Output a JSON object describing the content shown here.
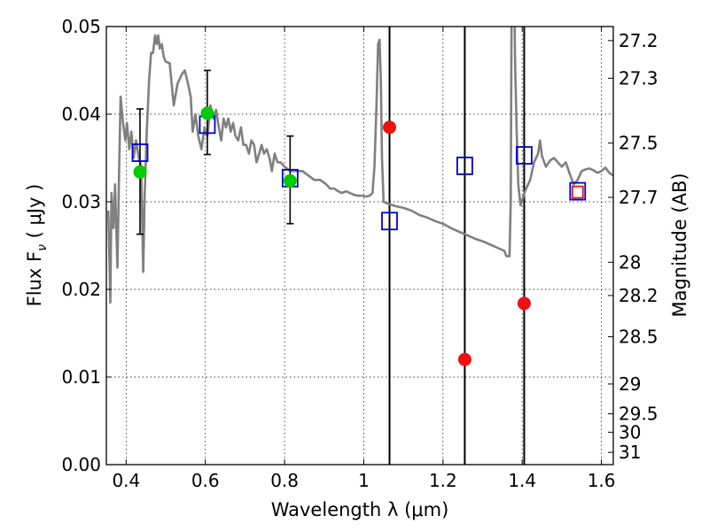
{
  "chart_data": {
    "type": "scatter",
    "xlabel": "Wavelength  λ (μm)",
    "ylabel": "Flux  F",
    "ylabel_sub": "ν",
    "ylabel_unit": "  ( μJy )",
    "y2label": "Magnitude (AB)",
    "xlim": [
      0.35,
      1.63
    ],
    "ylim": [
      0.0,
      0.05
    ],
    "grid": true,
    "x_ticks": [
      {
        "value": 0.4,
        "label": "0.4"
      },
      {
        "value": 0.6,
        "label": "0.6"
      },
      {
        "value": 0.8,
        "label": "0.8"
      },
      {
        "value": 1.0,
        "label": "1"
      },
      {
        "value": 1.2,
        "label": "1.2"
      },
      {
        "value": 1.4,
        "label": "1.4"
      },
      {
        "value": 1.6,
        "label": "1.6"
      }
    ],
    "y_ticks": [
      {
        "value": 0.0,
        "label": "0.00"
      },
      {
        "value": 0.01,
        "label": "0.01"
      },
      {
        "value": 0.02,
        "label": "0.02"
      },
      {
        "value": 0.03,
        "label": "0.03"
      },
      {
        "value": 0.04,
        "label": "0.04"
      },
      {
        "value": 0.05,
        "label": "0.05"
      }
    ],
    "mag_ticks": [
      {
        "label": "27.2",
        "flux": 0.0484
      },
      {
        "label": "27.3",
        "flux": 0.0441
      },
      {
        "label": "27.5",
        "flux": 0.0367
      },
      {
        "label": "27.7",
        "flux": 0.0305
      },
      {
        "label": "28",
        "flux": 0.0231
      },
      {
        "label": "28.2",
        "flux": 0.0193
      },
      {
        "label": "28.5",
        "flux": 0.0146
      },
      {
        "label": "29",
        "flux": 0.0092
      },
      {
        "label": "29.5",
        "flux": 0.0058
      },
      {
        "label": "30",
        "flux": 0.0037
      },
      {
        "label": "31",
        "flux": 0.0014
      }
    ],
    "model_spectrum": {
      "color": "#808080",
      "points": [
        [
          0.355,
          0.029
        ],
        [
          0.36,
          0.0185
        ],
        [
          0.363,
          0.031
        ],
        [
          0.368,
          0.027
        ],
        [
          0.372,
          0.032
        ],
        [
          0.378,
          0.0225
        ],
        [
          0.382,
          0.033
        ],
        [
          0.386,
          0.042
        ],
        [
          0.392,
          0.039
        ],
        [
          0.398,
          0.037
        ],
        [
          0.402,
          0.039
        ],
        [
          0.408,
          0.036
        ],
        [
          0.413,
          0.038
        ],
        [
          0.419,
          0.035
        ],
        [
          0.425,
          0.037
        ],
        [
          0.432,
          0.035
        ],
        [
          0.438,
          0.034
        ],
        [
          0.443,
          0.022
        ],
        [
          0.447,
          0.031
        ],
        [
          0.452,
          0.038
        ],
        [
          0.458,
          0.044
        ],
        [
          0.463,
          0.047
        ],
        [
          0.468,
          0.047
        ],
        [
          0.473,
          0.049
        ],
        [
          0.477,
          0.048
        ],
        [
          0.481,
          0.049
        ],
        [
          0.485,
          0.0475
        ],
        [
          0.49,
          0.048
        ],
        [
          0.495,
          0.0465
        ],
        [
          0.5,
          0.046
        ],
        [
          0.51,
          0.0458
        ],
        [
          0.52,
          0.041
        ],
        [
          0.53,
          0.0435
        ],
        [
          0.54,
          0.0445
        ],
        [
          0.548,
          0.045
        ],
        [
          0.556,
          0.0435
        ],
        [
          0.563,
          0.042
        ],
        [
          0.568,
          0.038
        ],
        [
          0.575,
          0.04
        ],
        [
          0.582,
          0.0375
        ],
        [
          0.59,
          0.036
        ],
        [
          0.598,
          0.0385
        ],
        [
          0.605,
          0.0375
        ],
        [
          0.613,
          0.041
        ],
        [
          0.62,
          0.0395
        ],
        [
          0.627,
          0.0405
        ],
        [
          0.634,
          0.0385
        ],
        [
          0.64,
          0.037
        ],
        [
          0.646,
          0.0395
        ],
        [
          0.652,
          0.0385
        ],
        [
          0.658,
          0.0395
        ],
        [
          0.664,
          0.038
        ],
        [
          0.67,
          0.039
        ],
        [
          0.676,
          0.0375
        ],
        [
          0.683,
          0.037
        ],
        [
          0.69,
          0.0385
        ],
        [
          0.696,
          0.0365
        ],
        [
          0.703,
          0.0365
        ],
        [
          0.71,
          0.0355
        ],
        [
          0.716,
          0.037
        ],
        [
          0.723,
          0.0365
        ],
        [
          0.729,
          0.0345
        ],
        [
          0.736,
          0.0355
        ],
        [
          0.742,
          0.0365
        ],
        [
          0.748,
          0.0355
        ],
        [
          0.755,
          0.036
        ],
        [
          0.762,
          0.035
        ],
        [
          0.768,
          0.0335
        ],
        [
          0.775,
          0.0355
        ],
        [
          0.782,
          0.0345
        ],
        [
          0.79,
          0.0345
        ],
        [
          0.8,
          0.034
        ],
        [
          0.815,
          0.0335
        ],
        [
          0.83,
          0.0335
        ],
        [
          0.845,
          0.0335
        ],
        [
          0.86,
          0.033
        ],
        [
          0.875,
          0.0325
        ],
        [
          0.89,
          0.0325
        ],
        [
          0.905,
          0.032
        ],
        [
          0.915,
          0.0315
        ],
        [
          0.925,
          0.0315
        ],
        [
          0.935,
          0.0312
        ],
        [
          0.945,
          0.031
        ],
        [
          0.955,
          0.0312
        ],
        [
          0.965,
          0.031
        ],
        [
          0.975,
          0.0308
        ],
        [
          0.985,
          0.0307
        ],
        [
          0.995,
          0.0307
        ],
        [
          1.005,
          0.0306
        ],
        [
          1.015,
          0.0307
        ],
        [
          1.022,
          0.031
        ],
        [
          1.027,
          0.034
        ],
        [
          1.032,
          0.041
        ],
        [
          1.036,
          0.048
        ],
        [
          1.04,
          0.0485
        ],
        [
          1.043,
          0.044
        ],
        [
          1.046,
          0.035
        ],
        [
          1.05,
          0.03
        ],
        [
          1.06,
          0.0298
        ],
        [
          1.08,
          0.0295
        ],
        [
          1.1,
          0.0293
        ],
        [
          1.12,
          0.029
        ],
        [
          1.14,
          0.0285
        ],
        [
          1.16,
          0.0282
        ],
        [
          1.18,
          0.0278
        ],
        [
          1.2,
          0.0275
        ],
        [
          1.22,
          0.027
        ],
        [
          1.24,
          0.0266
        ],
        [
          1.26,
          0.0262
        ],
        [
          1.28,
          0.0258
        ],
        [
          1.3,
          0.0255
        ],
        [
          1.32,
          0.0251
        ],
        [
          1.34,
          0.0247
        ],
        [
          1.355,
          0.0244
        ],
        [
          1.36,
          0.0238
        ],
        [
          1.368,
          0.0238
        ],
        [
          1.371,
          0.03
        ],
        [
          1.374,
          0.06
        ],
        [
          1.378,
          0.06
        ],
        [
          1.382,
          0.046
        ],
        [
          1.386,
          0.038
        ],
        [
          1.39,
          0.032
        ],
        [
          1.396,
          0.0296
        ],
        [
          1.402,
          0.0305
        ],
        [
          1.41,
          0.0315
        ],
        [
          1.42,
          0.0325
        ],
        [
          1.43,
          0.0345
        ],
        [
          1.44,
          0.0355
        ],
        [
          1.445,
          0.037
        ],
        [
          1.45,
          0.0352
        ],
        [
          1.46,
          0.034
        ],
        [
          1.47,
          0.0347
        ],
        [
          1.48,
          0.035
        ],
        [
          1.49,
          0.0345
        ],
        [
          1.5,
          0.034
        ],
        [
          1.51,
          0.0345
        ],
        [
          1.52,
          0.0332
        ],
        [
          1.53,
          0.032
        ],
        [
          1.54,
          0.0325
        ],
        [
          1.55,
          0.0335
        ],
        [
          1.56,
          0.0337
        ],
        [
          1.57,
          0.0338
        ],
        [
          1.58,
          0.0336
        ],
        [
          1.59,
          0.0333
        ],
        [
          1.6,
          0.0335
        ],
        [
          1.61,
          0.0339
        ],
        [
          1.62,
          0.0333
        ],
        [
          1.63,
          0.033
        ]
      ]
    },
    "filter_lines": [
      1.065,
      1.255,
      1.405
    ],
    "synthetic_photometry": {
      "color": "#0000cc",
      "points": [
        {
          "x": 0.435,
          "y": 0.0356
        },
        {
          "x": 0.605,
          "y": 0.0388
        },
        {
          "x": 0.814,
          "y": 0.0327
        },
        {
          "x": 1.065,
          "y": 0.0278
        },
        {
          "x": 1.255,
          "y": 0.0341
        },
        {
          "x": 1.405,
          "y": 0.0353
        },
        {
          "x": 1.54,
          "y": 0.0312
        }
      ]
    },
    "green_detections": {
      "color": "#00cc00",
      "points": [
        {
          "x": 0.435,
          "y": 0.0334,
          "err": [
            0.0263,
            0.0406
          ]
        },
        {
          "x": 0.605,
          "y": 0.0401,
          "err": [
            0.0354,
            0.045
          ]
        },
        {
          "x": 0.814,
          "y": 0.0324,
          "err": [
            0.0275,
            0.0375
          ]
        }
      ]
    },
    "red_detections": {
      "color": "#ee1111",
      "points": [
        {
          "x": 1.065,
          "y": 0.0385
        },
        {
          "x": 1.255,
          "y": 0.012
        },
        {
          "x": 1.405,
          "y": 0.0184
        }
      ]
    },
    "red_square": {
      "x": 1.54,
      "y": 0.0311,
      "color": "#ee1111"
    }
  }
}
